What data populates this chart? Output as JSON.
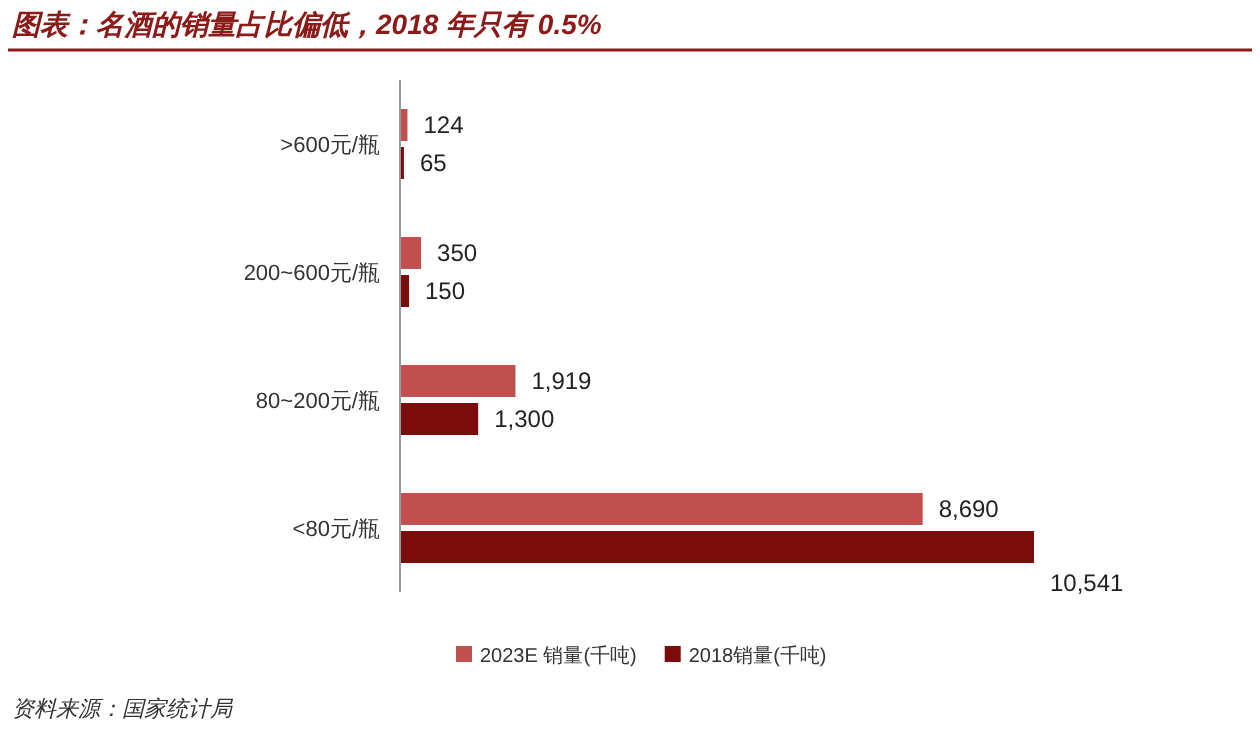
{
  "chart_data": {
    "type": "bar",
    "orientation": "horizontal",
    "title": "图表：名酒的销量占比偏低，2018 年只有 0.5%",
    "categories": [
      ">600元/瓶",
      "200~600元/瓶",
      "80~200元/瓶",
      "<80元/瓶"
    ],
    "series": [
      {
        "name": "2023E 销量(千吨)",
        "color": "#c0504d",
        "values": [
          124,
          350,
          1919,
          8690
        ],
        "value_labels": [
          "124",
          "350",
          "1,919",
          "8,690"
        ]
      },
      {
        "name": "2018销量(千吨)",
        "color": "#7b0c0c",
        "values": [
          65,
          150,
          1300,
          10541
        ],
        "value_labels": [
          "65",
          "150",
          "1,300",
          "10,541"
        ]
      }
    ],
    "legend": "bottom",
    "annotations": [
      "资料来源：国家统计局"
    ]
  }
}
